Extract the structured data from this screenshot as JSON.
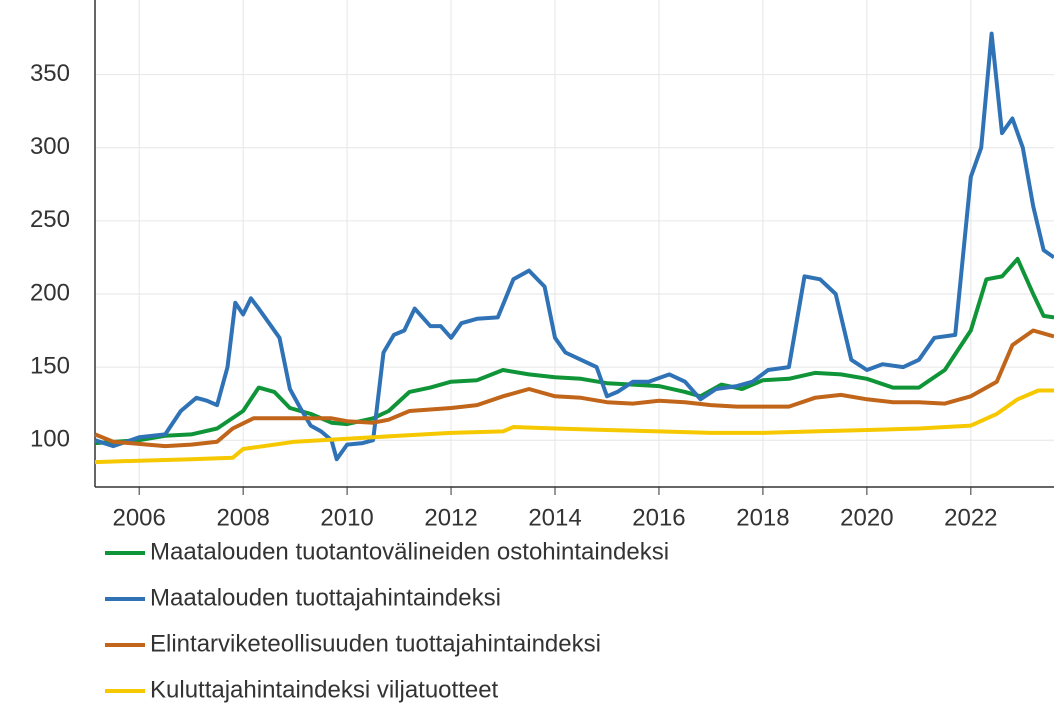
{
  "chart_data": {
    "type": "line",
    "xlim": [
      2005.15,
      2023.6
    ],
    "xticks": [
      2006,
      2008,
      2010,
      2012,
      2014,
      2016,
      2018,
      2020,
      2022
    ],
    "ylim": [
      68,
      401
    ],
    "yticks": [
      100,
      150,
      200,
      250,
      300,
      350
    ],
    "grid": true,
    "legend": "bottom",
    "series": [
      {
        "name": "Maatalouden tuotantovälineiden ostohintaindeksi",
        "color": "#0f9538",
        "x": [
          2005.15,
          2006,
          2006.5,
          2007,
          2007.5,
          2008,
          2008.3,
          2008.6,
          2008.9,
          2009.3,
          2009.7,
          2010,
          2010.5,
          2010.8,
          2011.2,
          2011.6,
          2012,
          2012.5,
          2013,
          2013.5,
          2014,
          2014.5,
          2015,
          2015.5,
          2016,
          2016.5,
          2016.8,
          2017.2,
          2017.6,
          2018,
          2018.5,
          2019,
          2019.5,
          2020,
          2020.5,
          2021,
          2021.5,
          2022,
          2022.3,
          2022.6,
          2022.9,
          2023.2,
          2023.4,
          2023.6
        ],
        "values": [
          98,
          100,
          103,
          104,
          108,
          120,
          136,
          133,
          122,
          118,
          112,
          111,
          115,
          120,
          133,
          136,
          140,
          141,
          148,
          145,
          143,
          142,
          139,
          138,
          137,
          133,
          130,
          138,
          135,
          141,
          142,
          146,
          145,
          142,
          136,
          136,
          148,
          175,
          210,
          212,
          224,
          200,
          185,
          184
        ]
      },
      {
        "name": "Maatalouden tuottajahintaindeksi",
        "color": "#2f73b6",
        "x": [
          2005.15,
          2005.5,
          2006.0,
          2006.5,
          2006.8,
          2007.1,
          2007.3,
          2007.5,
          2007.7,
          2007.85,
          2008.0,
          2008.15,
          2008.3,
          2008.5,
          2008.7,
          2008.9,
          2009.1,
          2009.3,
          2009.5,
          2009.7,
          2009.8,
          2010.0,
          2010.3,
          2010.5,
          2010.7,
          2010.9,
          2011.1,
          2011.3,
          2011.6,
          2011.8,
          2012.0,
          2012.2,
          2012.5,
          2012.9,
          2013.2,
          2013.5,
          2013.8,
          2014.0,
          2014.2,
          2014.5,
          2014.8,
          2015.0,
          2015.2,
          2015.5,
          2015.8,
          2016.2,
          2016.5,
          2016.8,
          2017.1,
          2017.5,
          2017.8,
          2018.1,
          2018.5,
          2018.8,
          2019.1,
          2019.4,
          2019.7,
          2020.0,
          2020.3,
          2020.7,
          2021.0,
          2021.3,
          2021.7,
          2022.0,
          2022.2,
          2022.4,
          2022.6,
          2022.8,
          2023.0,
          2023.2,
          2023.4,
          2023.6
        ],
        "values": [
          100,
          96,
          102,
          104,
          120,
          129,
          127,
          124,
          150,
          194,
          186,
          197,
          190,
          180,
          170,
          135,
          122,
          110,
          106,
          100,
          87,
          97,
          98,
          100,
          160,
          172,
          175,
          190,
          178,
          178,
          170,
          180,
          183,
          184,
          210,
          216,
          205,
          170,
          160,
          155,
          150,
          130,
          133,
          140,
          140,
          145,
          140,
          128,
          135,
          137,
          140,
          148,
          150,
          212,
          210,
          200,
          155,
          148,
          152,
          150,
          155,
          170,
          172,
          280,
          300,
          378,
          310,
          320,
          300,
          260,
          230,
          225
        ]
      },
      {
        "name": "Elintarviketeollisuuden tuottajahintaindeksi",
        "color": "#c0651a",
        "x": [
          2005.15,
          2005.5,
          2006.5,
          2007,
          2007.5,
          2007.8,
          2008.2,
          2009,
          2009.7,
          2010,
          2010.5,
          2010.8,
          2011.2,
          2012,
          2012.5,
          2013,
          2013.5,
          2014,
          2014.5,
          2015,
          2015.5,
          2016,
          2016.5,
          2017,
          2017.5,
          2018.5,
          2019,
          2019.5,
          2020,
          2020.5,
          2021,
          2021.5,
          2022,
          2022.5,
          2022.8,
          2023.2,
          2023.6
        ],
        "values": [
          104,
          99,
          96,
          97,
          99,
          108,
          115,
          115,
          115,
          113,
          112,
          114,
          120,
          122,
          124,
          130,
          135,
          130,
          129,
          126,
          125,
          127,
          126,
          124,
          123,
          123,
          129,
          131,
          128,
          126,
          126,
          125,
          130,
          140,
          165,
          175,
          171
        ]
      },
      {
        "name": "Kuluttajahintaindeksi viljatuotteet",
        "color": "#f5c800",
        "x": [
          2005.15,
          2006,
          2007,
          2007.8,
          2008,
          2009,
          2010,
          2011,
          2012,
          2013,
          2013.2,
          2014,
          2015,
          2016,
          2017,
          2018,
          2019,
          2020,
          2021,
          2022,
          2022.5,
          2022.9,
          2023.3,
          2023.6
        ],
        "values": [
          85,
          86,
          87,
          88,
          94,
          99,
          101,
          103,
          105,
          106,
          109,
          108,
          107,
          106,
          105,
          105,
          106,
          107,
          108,
          110,
          118,
          128,
          134,
          134
        ]
      }
    ]
  }
}
